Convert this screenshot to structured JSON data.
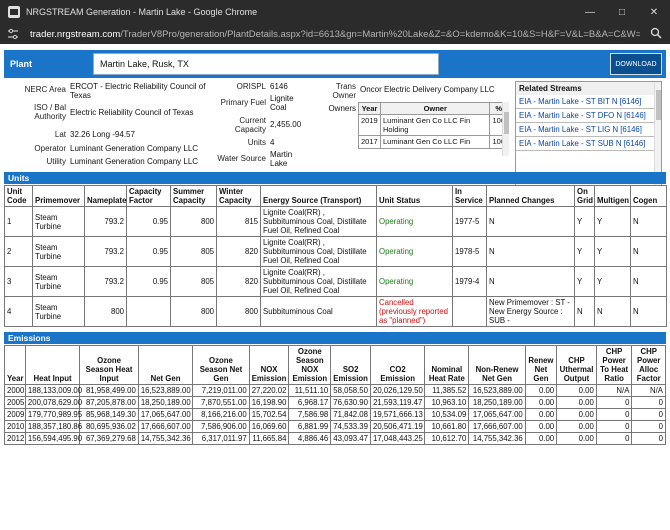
{
  "window": {
    "title": "NRGSTREAM Generation - Martin Lake - Google Chrome",
    "url_host": "trader.nrgstream.com",
    "url_path": "/TraderV8Pro/generation/PlantDetails.aspx?id=6613&gn=Martin%20Lake&Z=&O=kdemo&K=10&S=H&F=V&L=B&A=C&W=B..."
  },
  "plant": {
    "label": "Plant",
    "value": "Martin Lake,  Rusk,  TX",
    "download": "DOWNLOAD"
  },
  "details": {
    "nerc_area_label": "NERC Area",
    "nerc_area": "ERCOT - Electric Reliability Council of Texas",
    "iso_label": "ISO / Bal Authority",
    "iso": "Electric Reliability Council of Texas",
    "lat_label": "Lat",
    "lat_long": "32.26 Long -94.57",
    "operator_label": "Operator",
    "operator": "Luminant Generation Company LLC",
    "utility_label": "Utility",
    "utility": "Luminant Generation Company LLC",
    "orispl_label": "ORISPL",
    "orispl": "6146",
    "primary_fuel_label": "Primary Fuel",
    "primary_fuel": "Lignite Coal",
    "current_capacity_label": "Current Capacity",
    "current_capacity": "2,455.00",
    "units_label": "Units",
    "units": "4",
    "water_source_label": "Water Source",
    "water_source": "Martin Lake",
    "trans_owner_label": "Trans Owner",
    "trans_owner": "Oncor Electric Delivery Company LLC",
    "owners_label": "Owners"
  },
  "owners_table": {
    "headers": [
      "Year",
      "Owner",
      "%"
    ],
    "rows": [
      [
        "2019",
        "Luminant Gen Co LLC Fin Holding",
        "100"
      ],
      [
        "2017",
        "Luminant Gen Co LLC Fin Holding",
        "100"
      ]
    ]
  },
  "related": {
    "title": "Related Streams",
    "items": [
      "EIA - Martin Lake - ST BIT N [6146]",
      "EIA - Martin Lake - ST DFO N [6146]",
      "EIA - Martin Lake - ST LIG N [6146]",
      "EIA - Martin Lake - ST SUB N [6146]"
    ]
  },
  "units_section": {
    "title": "Units",
    "headers": [
      "Unit Code",
      "Primemover",
      "Nameplate",
      "Capacity Factor",
      "Summer Capacity",
      "Winter Capacity",
      "Energy Source (Transport)",
      "Unit Status",
      "In Service",
      "Planned Changes",
      "On Grid",
      "Multigen",
      "Cogen"
    ],
    "rows": [
      [
        "1",
        "Steam Turbine",
        "793.2",
        "0.95",
        "800",
        "815",
        "Lignite Coal(RR) , Subbituminous Coal, Distillate Fuel Oil, Refined Coal",
        "Operating",
        "1977-5",
        "N",
        "Y",
        "Y",
        "N"
      ],
      [
        "2",
        "Steam Turbine",
        "793.2",
        "0.95",
        "805",
        "820",
        "Lignite Coal(RR) , Subbituminous Coal, Distillate Fuel Oil, Refined Coal",
        "Operating",
        "1978-5",
        "N",
        "Y",
        "Y",
        "N"
      ],
      [
        "3",
        "Steam Turbine",
        "793.2",
        "0.95",
        "805",
        "820",
        "Lignite Coal(RR) , Subbituminous Coal, Distillate Fuel Oil, Refined Coal",
        "Operating",
        "1979-4",
        "N",
        "Y",
        "Y",
        "N"
      ],
      [
        "4",
        "Steam Turbine",
        "800",
        "",
        "800",
        "800",
        "Subbituminous Coal",
        "Cancelled (previously reported as \"planned\")",
        "",
        "New Primemover : ST - New Energy Source : SUB -",
        "N",
        "N",
        "N"
      ]
    ]
  },
  "emissions_section": {
    "title": "Emissions",
    "headers": [
      "Year",
      "Heat Input",
      "Ozone Season Heat Input",
      "Net Gen",
      "Ozone Season Net Gen",
      "NOX Emission",
      "Ozone Season NOX Emission",
      "SO2 Emission",
      "CO2 Emission",
      "Nominal Heat Rate",
      "Non-Renew Net Gen",
      "Renew Net Gen",
      "CHP Uthermal Output",
      "CHP Power To Heat Ratio",
      "CHP Power Alloc Factor"
    ],
    "rows": [
      [
        "2000",
        "188,133,009.00",
        "81,958,499.00",
        "16,523,889.00",
        "7,219,011.00",
        "27,220.02",
        "11,511.10",
        "58,058.50",
        "20,026,129.50",
        "11,385.52",
        "16,523,889.00",
        "0.00",
        "0.00",
        "N/A",
        "N/A"
      ],
      [
        "2005",
        "200,078,629.00",
        "87,205,878.00",
        "18,250,189.00",
        "7,870,551.00",
        "16,198.90",
        "6,968.17",
        "76,630.90",
        "21,593,119.47",
        "10,963.10",
        "18,250,189.00",
        "0.00",
        "0.00",
        "0",
        "0"
      ],
      [
        "2009",
        "179,770,989.95",
        "85,968,149.30",
        "17,065,647.00",
        "8,166,216.00",
        "15,702.54",
        "7,586.98",
        "71,842.08",
        "19,571,666.13",
        "10,534.09",
        "17,065,647.00",
        "0.00",
        "0.00",
        "0",
        "0"
      ],
      [
        "2010",
        "188,357,180.86",
        "80,695,936.02",
        "17,666,607.00",
        "7,586,906.00",
        "16,069.60",
        "6,881.99",
        "74,533.39",
        "20,506,471.19",
        "10,661.80",
        "17,666,607.00",
        "0.00",
        "0.00",
        "0",
        "0"
      ],
      [
        "2012",
        "156,594,495.90",
        "67,369,279.68",
        "14,755,342.36",
        "6,317,011.97",
        "11,665.84",
        "4,886.46",
        "43,093.47",
        "17,048,443.25",
        "10,612.70",
        "14,755,342.36",
        "0.00",
        "0.00",
        "0",
        "0"
      ]
    ]
  },
  "colors": {
    "accent": "#1a75c9",
    "operating": "#1a7f1a",
    "cancelled": "#d01010",
    "link": "#0a46a8"
  }
}
